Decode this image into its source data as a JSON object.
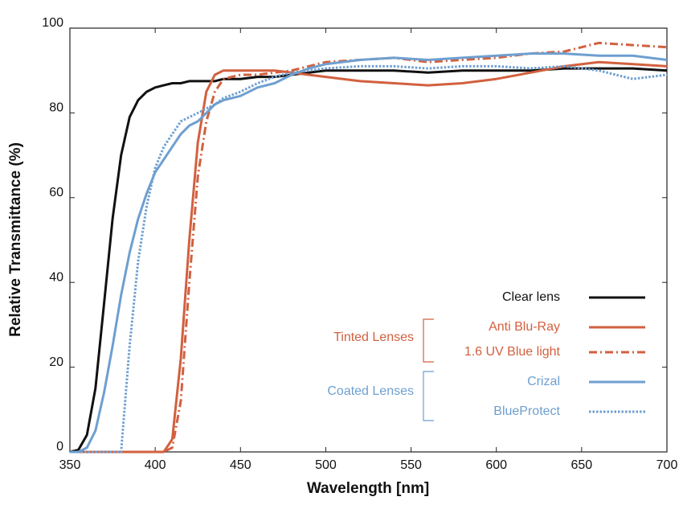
{
  "chart_data": {
    "type": "line",
    "xlabel": "Wavelength [nm]",
    "ylabel": "Relative Transmittance (%)",
    "x": [
      350,
      355,
      360,
      365,
      370,
      375,
      380,
      385,
      390,
      395,
      400,
      405,
      410,
      415,
      420,
      425,
      430,
      435,
      440,
      450,
      460,
      470,
      480,
      490,
      500,
      520,
      540,
      560,
      580,
      600,
      620,
      640,
      660,
      680,
      700
    ],
    "series": [
      {
        "name": "Clear lens",
        "color": "#111111",
        "style": "solid",
        "values": [
          0,
          0.5,
          4,
          15,
          35,
          55,
          70,
          79,
          83,
          85,
          86,
          86.5,
          87,
          87,
          87.5,
          87.5,
          87.5,
          87.5,
          88,
          88,
          88.5,
          88.5,
          89,
          89.5,
          90,
          90,
          90,
          89.5,
          90,
          90,
          90,
          90.5,
          90.5,
          90.5,
          90
        ]
      },
      {
        "name": "Anti Blu-Ray",
        "color": "#d2603f",
        "style": "solid",
        "values": [
          0,
          0,
          0,
          0,
          0,
          0,
          0,
          0,
          0,
          0,
          0,
          0,
          3,
          22,
          50,
          73,
          85,
          89,
          90,
          90,
          90,
          90,
          89.5,
          89,
          88.5,
          87.5,
          87,
          86.5,
          87,
          88,
          89.5,
          91,
          92,
          91.5,
          91
        ]
      },
      {
        "name": "1.6 UV Blue light",
        "color": "#d2603f",
        "style": "dashdot",
        "values": [
          0,
          0,
          0,
          0,
          0,
          0,
          0,
          0,
          0,
          0,
          0,
          0,
          1,
          12,
          40,
          65,
          78,
          85,
          88,
          89,
          89,
          89.5,
          90,
          91,
          92,
          92.5,
          93,
          92,
          92.5,
          93,
          94,
          94.5,
          96.5,
          96,
          95.5
        ]
      },
      {
        "name": "Crizal",
        "color": "#6e9fd0",
        "style": "solid",
        "values": [
          0,
          0,
          1,
          5,
          14,
          25,
          37,
          47,
          55,
          61,
          66,
          69,
          72,
          75,
          77,
          78,
          80,
          82,
          83,
          84,
          86,
          87,
          89,
          90.5,
          91.5,
          92.5,
          93,
          92.5,
          93,
          93.5,
          94,
          94,
          93.5,
          93.5,
          92.5
        ]
      },
      {
        "name": "BlueProtect",
        "color": "#6e9fd0",
        "style": "dotted",
        "values": [
          0,
          0,
          0,
          0,
          0,
          0,
          0,
          25,
          45,
          58,
          67,
          72,
          75,
          78,
          79,
          80,
          81,
          82,
          83.5,
          85,
          87,
          88.5,
          89.5,
          90,
          90.5,
          91,
          91,
          90.5,
          91,
          91,
          90.5,
          91,
          90,
          88,
          89
        ]
      }
    ],
    "annotations": [
      "Tinted Lenses",
      "Coated Lenses"
    ],
    "xlim": [
      350,
      700
    ],
    "ylim": [
      0,
      100
    ],
    "xticks": [
      350,
      400,
      450,
      500,
      550,
      600,
      650,
      700
    ],
    "yticks": [
      0,
      20,
      40,
      60,
      80,
      100
    ]
  }
}
